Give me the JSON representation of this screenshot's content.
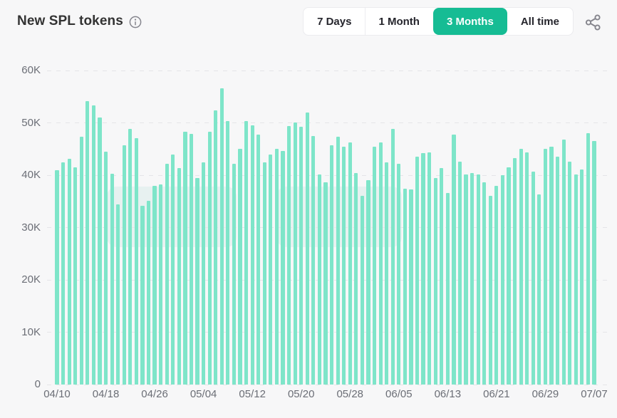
{
  "header": {
    "title": "New SPL tokens",
    "info_icon": "info-circle-icon"
  },
  "time_range": {
    "options": [
      {
        "label": "7 Days",
        "active": false
      },
      {
        "label": "1 Month",
        "active": false
      },
      {
        "label": "3 Months",
        "active": true
      },
      {
        "label": "All time",
        "active": false
      }
    ]
  },
  "share_icon": "share-nodes-icon",
  "colors": {
    "accent_active": "#16bc94",
    "bar": "#7ee5c9",
    "page_bg": "#f7f7f8",
    "grid_line": "#e5e5e8",
    "axis_text": "#6b6e76",
    "title_text": "#333333",
    "icon_gray": "#85858d"
  },
  "chart_data": {
    "type": "bar",
    "title": "New SPL tokens",
    "ylabel": "",
    "xlabel": "",
    "ylim": [
      0,
      60000
    ],
    "grid": "dashed-horizontal",
    "legend": "none",
    "y_ticks": [
      "0",
      "10K",
      "20K",
      "30K",
      "40K",
      "50K",
      "60K"
    ],
    "x_tick_labels": [
      "04/10",
      "04/18",
      "04/26",
      "05/04",
      "05/12",
      "05/20",
      "05/28",
      "06/05",
      "06/13",
      "06/21",
      "06/29",
      "07/07"
    ],
    "x": [
      "04/10",
      "04/11",
      "04/12",
      "04/13",
      "04/14",
      "04/15",
      "04/16",
      "04/17",
      "04/18",
      "04/19",
      "04/20",
      "04/21",
      "04/22",
      "04/23",
      "04/24",
      "04/25",
      "04/26",
      "04/27",
      "04/28",
      "04/29",
      "04/30",
      "05/01",
      "05/02",
      "05/03",
      "05/04",
      "05/05",
      "05/06",
      "05/07",
      "05/08",
      "05/09",
      "05/10",
      "05/11",
      "05/12",
      "05/13",
      "05/14",
      "05/15",
      "05/16",
      "05/17",
      "05/18",
      "05/19",
      "05/20",
      "05/21",
      "05/22",
      "05/23",
      "05/24",
      "05/25",
      "05/26",
      "05/27",
      "05/28",
      "05/29",
      "05/30",
      "05/31",
      "06/01",
      "06/02",
      "06/03",
      "06/04",
      "06/05",
      "06/06",
      "06/07",
      "06/08",
      "06/09",
      "06/10",
      "06/11",
      "06/12",
      "06/13",
      "06/14",
      "06/15",
      "06/16",
      "06/17",
      "06/18",
      "06/19",
      "06/20",
      "06/21",
      "06/22",
      "06/23",
      "06/24",
      "06/25",
      "06/26",
      "06/27",
      "06/28",
      "06/29",
      "06/30",
      "07/01",
      "07/02",
      "07/03",
      "07/04",
      "07/05",
      "07/06",
      "07/07"
    ],
    "values": [
      41000,
      42500,
      43200,
      41500,
      47400,
      54100,
      53300,
      51000,
      44500,
      40300,
      34400,
      45700,
      48800,
      47100,
      34100,
      35100,
      38000,
      38200,
      42200,
      43900,
      41300,
      48300,
      47900,
      39500,
      42500,
      48300,
      52400,
      56600,
      50300,
      42200,
      45100,
      50300,
      49500,
      47700,
      42400,
      44000,
      45000,
      44700,
      49400,
      50100,
      49200,
      52000,
      47500,
      40100,
      38700,
      45700,
      47400,
      45400,
      46300,
      40400,
      36000,
      39000,
      45400,
      46200,
      42500,
      48800,
      42200,
      37400,
      37300,
      43500,
      44200,
      44400,
      39500,
      41300,
      36600,
      47800,
      42600,
      40100,
      40400,
      40200,
      38700,
      36100,
      37900,
      40000,
      41500,
      43300,
      45000,
      44400,
      40700,
      36400,
      45100,
      45400,
      43500,
      46800,
      42600,
      40100,
      41100,
      48100,
      46600
    ]
  }
}
